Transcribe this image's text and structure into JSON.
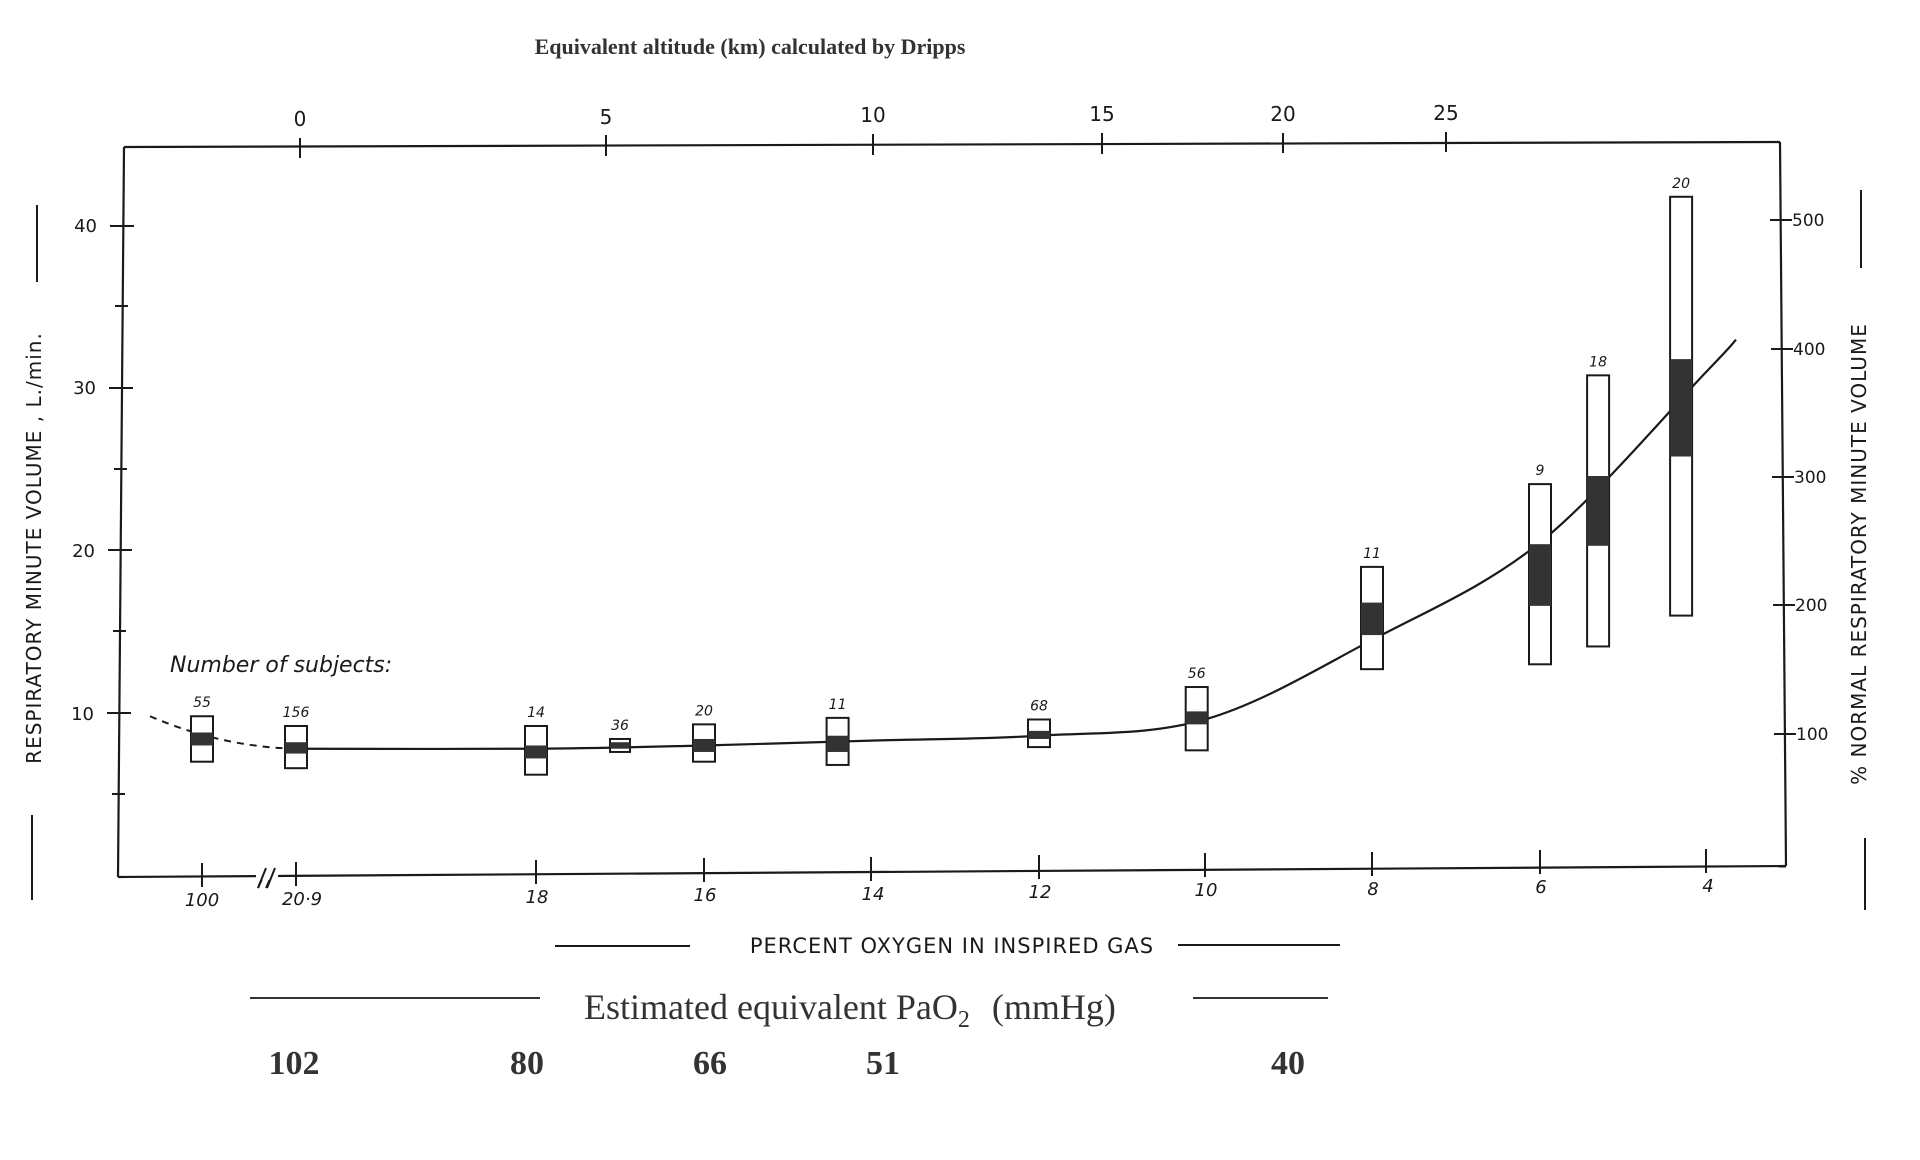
{
  "chart_data": {
    "type": "box",
    "title": "Equivalent altitude (km) calculated  by Dripps",
    "xlabel": "PERCENT OXYGEN IN INSPIRED GAS",
    "ylabel_left": "RESPIRATORY MINUTE VOLUME , L./min.",
    "ylabel_right": "% NORMAL RESPIRATORY MINUTE VOLUME",
    "top_axis_ticks": [
      "0",
      "5",
      "10",
      "15",
      "20",
      "25"
    ],
    "left_axis_ticks": [
      "10",
      "20",
      "30",
      "40"
    ],
    "right_axis_ticks": [
      "100",
      "200",
      "300",
      "400",
      "500"
    ],
    "bottom_axis_ticks": [
      "100",
      "20·9",
      "18",
      "16",
      "14",
      "12",
      "10",
      "8",
      "6",
      "4"
    ],
    "subjects_label": "Number of subjects:",
    "pao2_label": "Estimated equivalent PaO",
    "pao2_sub": "2",
    "pao2_unit": "(mmHg)",
    "pao2_values": [
      "102",
      "80",
      "66",
      "51",
      "40"
    ],
    "ylim": [
      0,
      44
    ],
    "boxes": [
      {
        "o2": "100",
        "n": "55",
        "low": 7.0,
        "q1": 8.0,
        "q3": 8.8,
        "high": 9.8
      },
      {
        "o2": "20.9",
        "n": "156",
        "low": 6.6,
        "q1": 7.5,
        "q3": 8.2,
        "high": 9.2
      },
      {
        "o2": "18",
        "n": "14",
        "low": 6.2,
        "q1": 7.2,
        "q3": 8.0,
        "high": 9.2
      },
      {
        "o2": "17",
        "n": "36",
        "low": 7.6,
        "q1": 7.8,
        "q3": 8.2,
        "high": 8.4
      },
      {
        "o2": "16",
        "n": "20",
        "low": 7.0,
        "q1": 7.6,
        "q3": 8.4,
        "high": 9.3
      },
      {
        "o2": "14.4",
        "n": "11",
        "low": 6.8,
        "q1": 7.6,
        "q3": 8.6,
        "high": 9.7
      },
      {
        "o2": "12",
        "n": "68",
        "low": 7.9,
        "q1": 8.4,
        "q3": 8.9,
        "high": 9.6
      },
      {
        "o2": "10.1",
        "n": "56",
        "low": 7.7,
        "q1": 9.3,
        "q3": 10.1,
        "high": 11.6
      },
      {
        "o2": "8",
        "n": "11",
        "low": 12.7,
        "q1": 14.8,
        "q3": 16.8,
        "high": 19.0
      },
      {
        "o2": "6",
        "n": "9",
        "low": 13.0,
        "q1": 16.6,
        "q3": 20.4,
        "high": 24.1
      },
      {
        "o2": "5.3",
        "n": "18",
        "low": 14.1,
        "q1": 20.3,
        "q3": 24.6,
        "high": 30.8
      },
      {
        "o2": "4.3",
        "n": "20",
        "low": 16.0,
        "q1": 25.8,
        "q3": 31.8,
        "high": 41.8
      }
    ],
    "fit_curve": [
      [
        100,
        9.8
      ],
      [
        20.9,
        7.8
      ],
      [
        18,
        7.8
      ],
      [
        16,
        8.0
      ],
      [
        14,
        8.3
      ],
      [
        12,
        8.6
      ],
      [
        10,
        9.6
      ],
      [
        8,
        14.5
      ],
      [
        6,
        20.5
      ],
      [
        4,
        31.0
      ]
    ]
  }
}
